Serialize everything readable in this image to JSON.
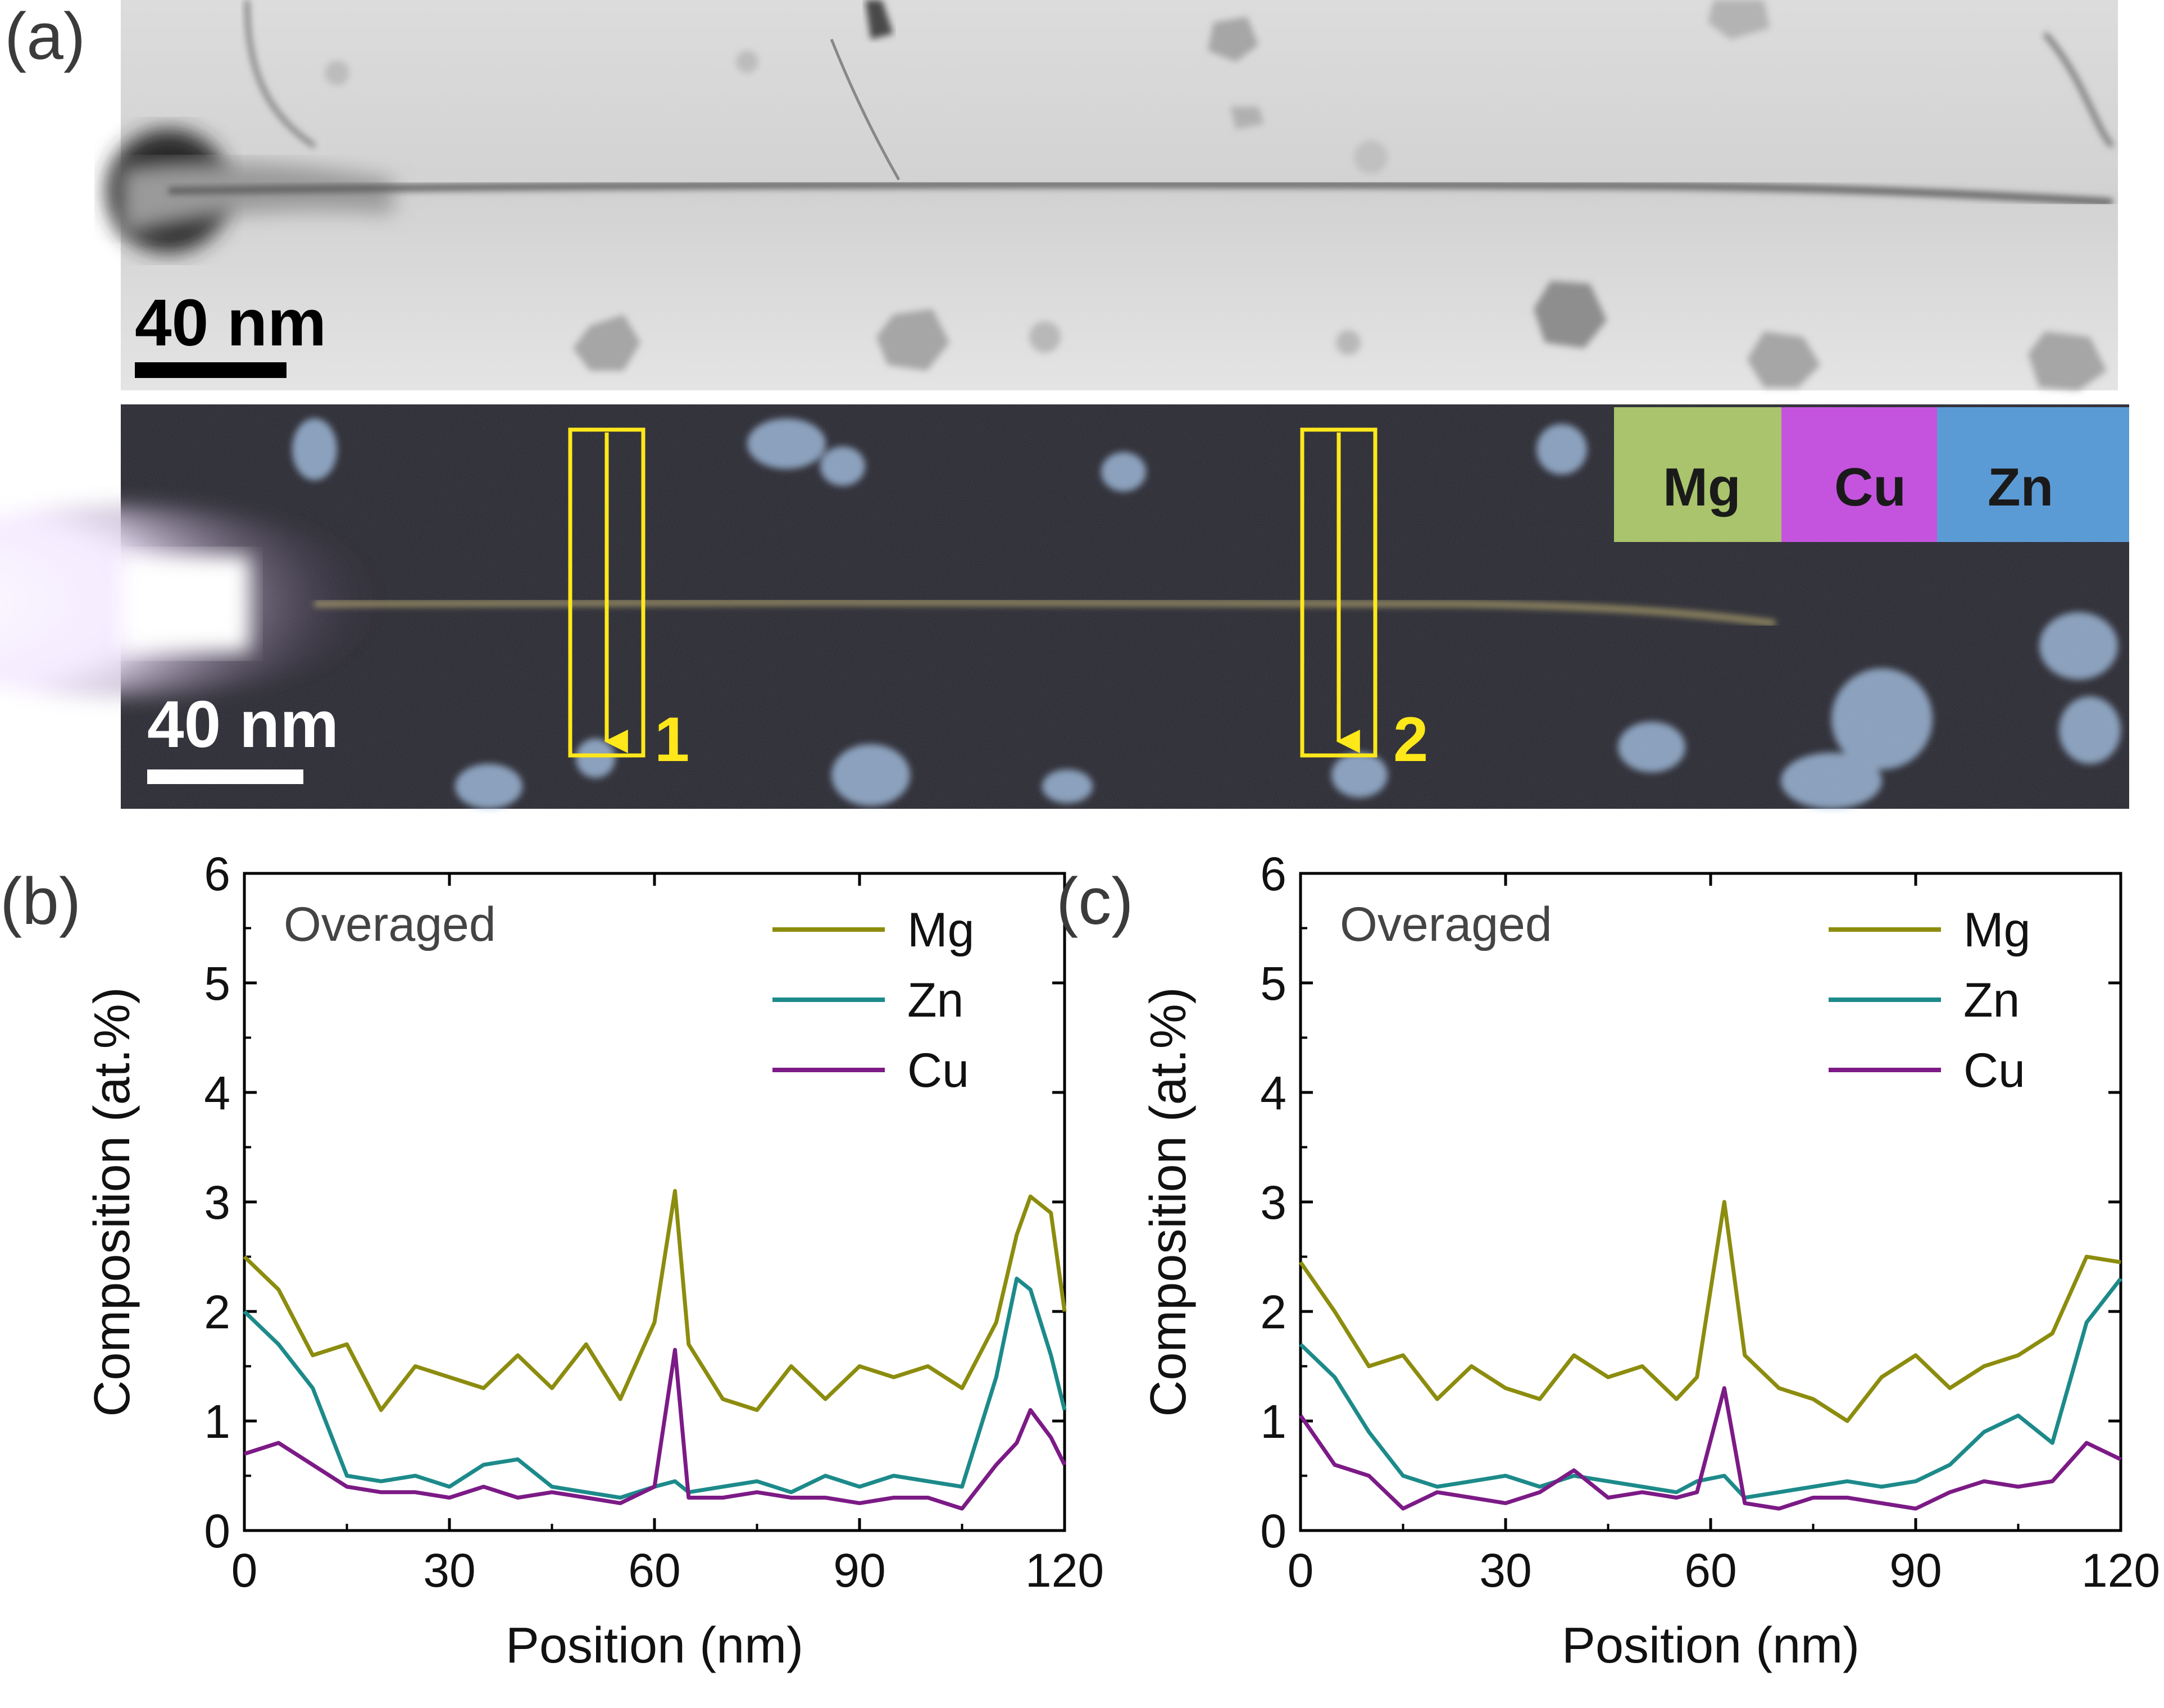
{
  "panel_a": {
    "label": "(a)",
    "bf_scale_bar": "40 nm",
    "eds_scale_bar": "40 nm",
    "element_key": [
      {
        "name": "Mg",
        "color": "#a9c46c"
      },
      {
        "name": "Cu",
        "color": "#c454de"
      },
      {
        "name": "Zn",
        "color": "#5b9bd5"
      }
    ],
    "line_scan_numbers": [
      "1",
      "2"
    ],
    "box_color": "#ffe81a"
  },
  "chart_data": [
    {
      "panel_label": "(b)",
      "type": "line",
      "annotation": "Overaged",
      "xlabel": "Position (nm)",
      "ylabel": "Composition (at.%)",
      "xlim": [
        0,
        120
      ],
      "ylim": [
        0,
        6
      ],
      "xticks": [
        "0",
        "30",
        "60",
        "90",
        "120"
      ],
      "yticks": [
        "0",
        "1",
        "2",
        "3",
        "4",
        "5",
        "6"
      ],
      "legend_position": "top-right",
      "x": [
        0,
        5,
        10,
        15,
        20,
        25,
        30,
        35,
        40,
        45,
        50,
        55,
        60,
        63,
        65,
        70,
        75,
        80,
        85,
        90,
        95,
        100,
        105,
        110,
        113,
        115,
        118,
        120
      ],
      "series": [
        {
          "name": "Mg",
          "color": "#8c8c0e",
          "values": [
            2.5,
            2.2,
            1.6,
            1.7,
            1.1,
            1.5,
            1.4,
            1.3,
            1.6,
            1.3,
            1.7,
            1.2,
            1.9,
            3.1,
            1.7,
            1.2,
            1.1,
            1.5,
            1.2,
            1.5,
            1.4,
            1.5,
            1.3,
            1.9,
            2.7,
            3.05,
            2.9,
            2.0
          ]
        },
        {
          "name": "Zn",
          "color": "#1d8a8a",
          "values": [
            2.0,
            1.7,
            1.3,
            0.5,
            0.45,
            0.5,
            0.4,
            0.6,
            0.65,
            0.4,
            0.35,
            0.3,
            0.4,
            0.45,
            0.35,
            0.4,
            0.45,
            0.35,
            0.5,
            0.4,
            0.5,
            0.45,
            0.4,
            1.4,
            2.3,
            2.2,
            1.6,
            1.1
          ]
        },
        {
          "name": "Cu",
          "color": "#7c1a86",
          "values": [
            0.7,
            0.8,
            0.6,
            0.4,
            0.35,
            0.35,
            0.3,
            0.4,
            0.3,
            0.35,
            0.3,
            0.25,
            0.4,
            1.65,
            0.3,
            0.3,
            0.35,
            0.3,
            0.3,
            0.25,
            0.3,
            0.3,
            0.2,
            0.6,
            0.8,
            1.1,
            0.85,
            0.6
          ]
        }
      ]
    },
    {
      "panel_label": "(c)",
      "type": "line",
      "annotation": "Overaged",
      "xlabel": "Position (nm)",
      "ylabel": "Composition (at.%)",
      "xlim": [
        0,
        120
      ],
      "ylim": [
        0,
        6
      ],
      "xticks": [
        "0",
        "30",
        "60",
        "90",
        "120"
      ],
      "yticks": [
        "0",
        "1",
        "2",
        "3",
        "4",
        "5",
        "6"
      ],
      "legend_position": "top-right",
      "x": [
        0,
        5,
        10,
        15,
        20,
        25,
        30,
        35,
        40,
        45,
        50,
        55,
        58,
        62,
        65,
        70,
        75,
        80,
        85,
        90,
        95,
        100,
        105,
        110,
        115,
        120
      ],
      "series": [
        {
          "name": "Mg",
          "color": "#8c8c0e",
          "values": [
            2.45,
            2.0,
            1.5,
            1.6,
            1.2,
            1.5,
            1.3,
            1.2,
            1.6,
            1.4,
            1.5,
            1.2,
            1.4,
            3.0,
            1.6,
            1.3,
            1.2,
            1.0,
            1.4,
            1.6,
            1.3,
            1.5,
            1.6,
            1.8,
            2.5,
            2.45
          ]
        },
        {
          "name": "Zn",
          "color": "#1d8a8a",
          "values": [
            1.7,
            1.4,
            0.9,
            0.5,
            0.4,
            0.45,
            0.5,
            0.4,
            0.5,
            0.45,
            0.4,
            0.35,
            0.45,
            0.5,
            0.3,
            0.35,
            0.4,
            0.45,
            0.4,
            0.45,
            0.6,
            0.9,
            1.05,
            0.8,
            1.9,
            2.3
          ]
        },
        {
          "name": "Cu",
          "color": "#7c1a86",
          "values": [
            1.05,
            0.6,
            0.5,
            0.2,
            0.35,
            0.3,
            0.25,
            0.35,
            0.55,
            0.3,
            0.35,
            0.3,
            0.35,
            1.3,
            0.25,
            0.2,
            0.3,
            0.3,
            0.25,
            0.2,
            0.35,
            0.45,
            0.4,
            0.45,
            0.8,
            0.65
          ]
        }
      ]
    }
  ]
}
